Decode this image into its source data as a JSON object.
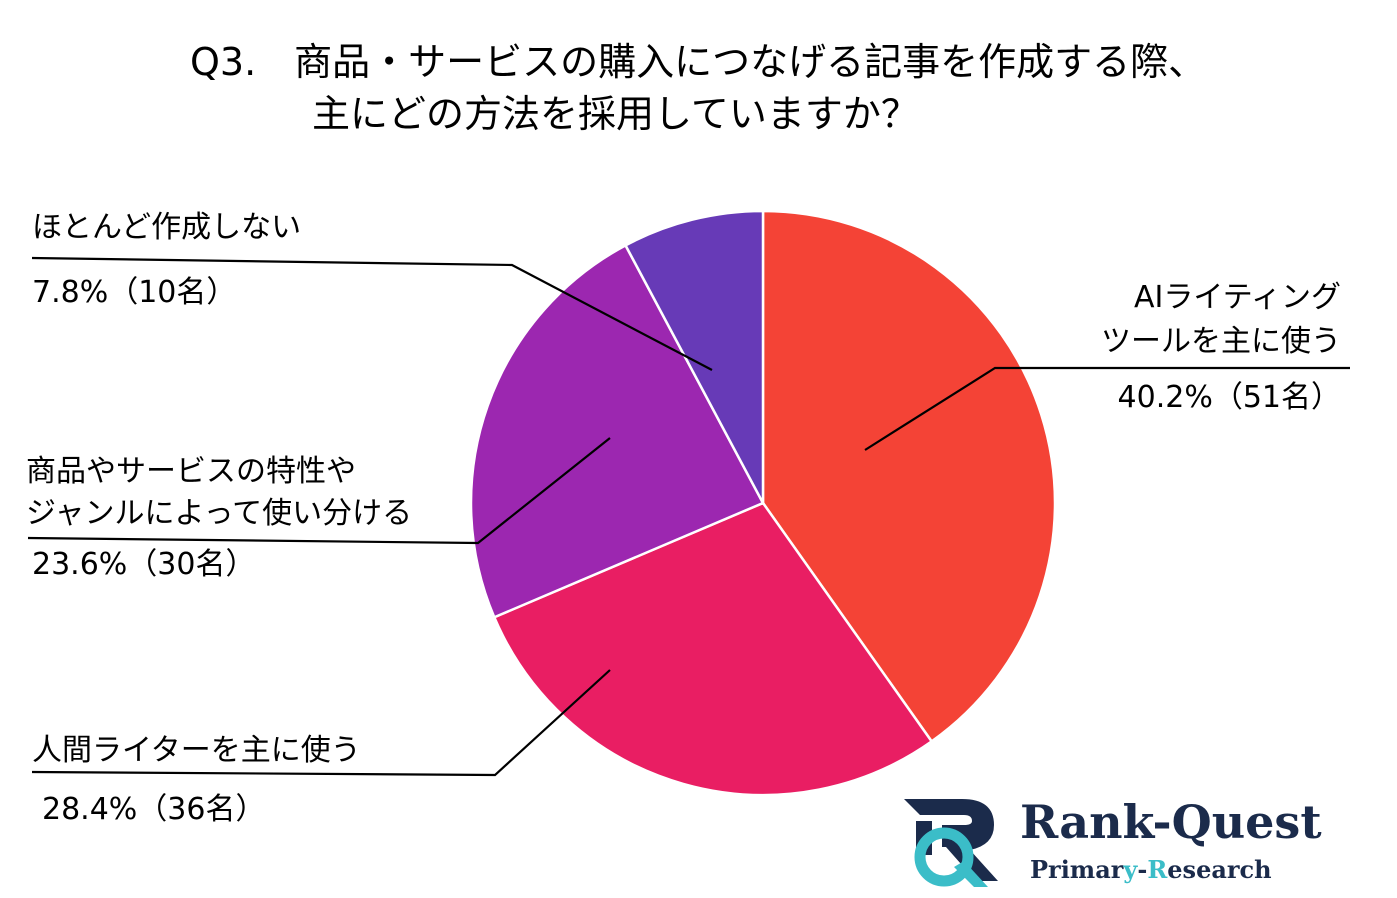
{
  "chart_data": {
    "type": "pie",
    "title_lines": [
      "Q3.　商品・サービスの購入につなげる記事を作成する際、",
      "主にどの方法を採用していますか？"
    ],
    "slices": [
      {
        "label_lines": [
          "AIライティング",
          "ツールを主に使う"
        ],
        "value_text": "40.2%（51名）",
        "percent": 40.2,
        "count": 51,
        "color": "#f44336"
      },
      {
        "label_lines": [
          "人間ライターを主に使う"
        ],
        "value_text": "28.4%（36名）",
        "percent": 28.4,
        "count": 36,
        "color": "#e91e63"
      },
      {
        "label_lines": [
          "商品やサービスの特性や",
          "ジャンルによって使い分ける"
        ],
        "value_text": "23.6%（30名）",
        "percent": 23.6,
        "count": 30,
        "color": "#9c27b0"
      },
      {
        "label_lines": [
          "ほとんど作成しない"
        ],
        "value_text": "7.8%（10名）",
        "percent": 7.8,
        "count": 10,
        "color": "#673ab7"
      }
    ],
    "start": "12 o'clock",
    "direction": "clockwise"
  },
  "logo": {
    "name_parts": [
      "Rank-Quest"
    ],
    "sub_parts": [
      "Primar",
      "y",
      "-",
      "R",
      "esearch"
    ],
    "colors": {
      "navy": "#1b2b4b",
      "teal": "#3bbdc8"
    }
  }
}
